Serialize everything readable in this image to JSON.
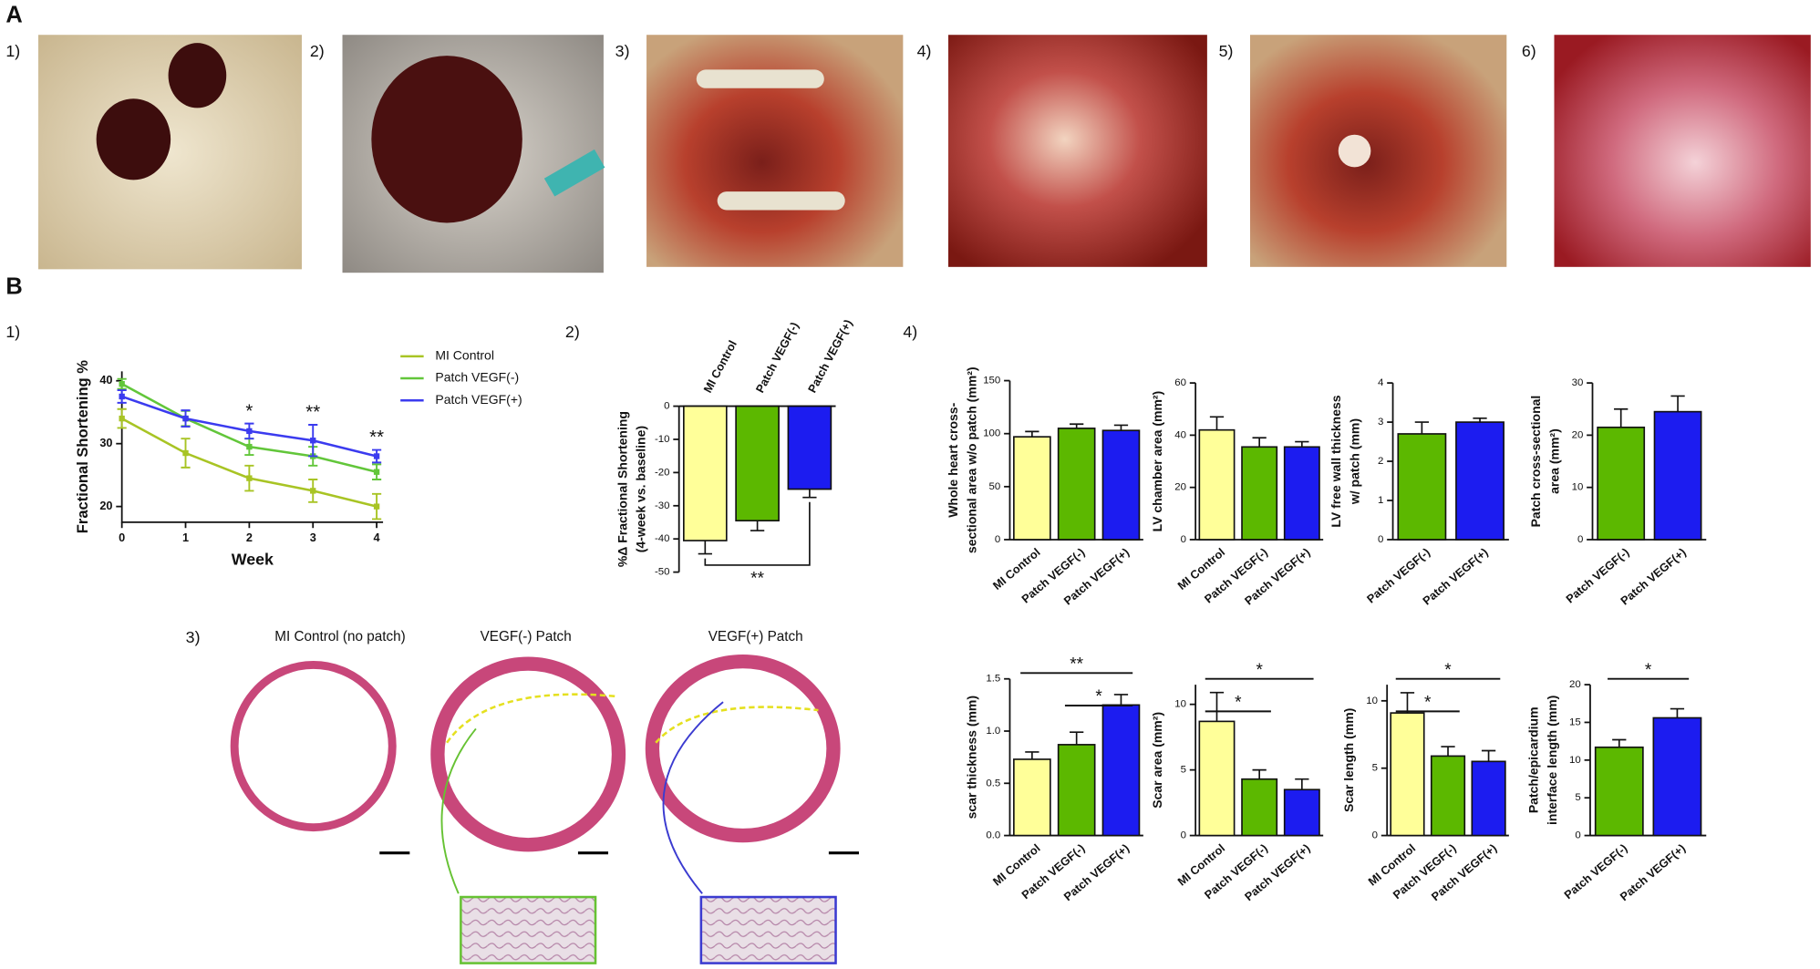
{
  "labels": {
    "a": "A",
    "b": "B",
    "photos": [
      "1)",
      "2)",
      "3)",
      "4)",
      "5)",
      "6)"
    ],
    "panels": [
      "1)",
      "2)",
      "3)",
      "4)"
    ],
    "histology": [
      "MI Control (no patch)",
      "VEGF(-) Patch",
      "VEGF(+) Patch"
    ]
  },
  "chart_data": [
    {
      "type": "line",
      "xlabel": "Week",
      "ylabel": "Fractional Shortening %",
      "x": [
        0,
        1,
        2,
        3,
        4
      ],
      "xlim": [
        0,
        4.1
      ],
      "xticks": [
        0,
        1,
        2,
        3,
        4
      ],
      "ylim": [
        17.5,
        41.5
      ],
      "yticks": [
        20,
        30,
        40
      ],
      "series": [
        {
          "name": "MI Control",
          "color": "#a8c424",
          "values": [
            34,
            28.5,
            24.5,
            22.5,
            20
          ],
          "errors": [
            1.5,
            2.3,
            2,
            1.8,
            2
          ]
        },
        {
          "name": "Patch VEGF(-)",
          "color": "#62c63a",
          "values": [
            39.5,
            34,
            29.5,
            28,
            25.5
          ],
          "errors": [
            0.8,
            1.2,
            1.3,
            1.5,
            1.2
          ]
        },
        {
          "name": "Patch VEGF(+)",
          "color": "#3b3bef",
          "values": [
            37.5,
            34,
            32,
            30.5,
            28
          ],
          "errors": [
            1,
            1.3,
            1.2,
            2.5,
            1
          ]
        }
      ],
      "annotations": [
        {
          "x": 2,
          "text": "*"
        },
        {
          "x": 3,
          "text": "**"
        },
        {
          "x": 4,
          "text": "**"
        }
      ]
    },
    {
      "type": "bar",
      "ylabel": [
        "%Δ Fractional Shortening",
        "(4-week vs. baseline)"
      ],
      "categories": [
        "MI Control",
        "Patch VEGF(-)",
        "Patch VEGF(+)"
      ],
      "values": [
        -40.5,
        -34.5,
        -25
      ],
      "errors": [
        4,
        3,
        2.5
      ],
      "colors": [
        "#ffff99",
        "#5cb800",
        "#1c1cf0"
      ],
      "ylim": [
        -50,
        0
      ],
      "yticks": [
        0,
        -10,
        -20,
        -30,
        -40,
        -50
      ],
      "significance": [
        {
          "between": [
            0,
            2
          ],
          "text": "**"
        }
      ]
    },
    {
      "type": "bar",
      "ylabel": [
        "Whole heart cross-",
        "sectional area w/o patch (mm²)"
      ],
      "categories": [
        "MI Control",
        "Patch VEGF(-)",
        "Patch VEGF(+)"
      ],
      "values": [
        97,
        105,
        103
      ],
      "errors": [
        5,
        4,
        5
      ],
      "colors": [
        "#ffff99",
        "#5cb800",
        "#1c1cf0"
      ],
      "ylim": [
        0,
        150
      ],
      "yticks": [
        0,
        50,
        100,
        150
      ]
    },
    {
      "type": "bar",
      "ylabel": [
        "LV chamber area (mm²)"
      ],
      "categories": [
        "MI Control",
        "Patch VEGF(-)",
        "Patch VEGF(+)"
      ],
      "values": [
        42,
        35.5,
        35.5
      ],
      "errors": [
        5,
        3.5,
        2
      ],
      "colors": [
        "#ffff99",
        "#5cb800",
        "#1c1cf0"
      ],
      "ylim": [
        0,
        60
      ],
      "yticks": [
        0,
        20,
        40,
        60
      ]
    },
    {
      "type": "bar",
      "ylabel": [
        "LV free wall thickness",
        "w/ patch (mm)"
      ],
      "categories": [
        "Patch VEGF(-)",
        "Patch VEGF(+)"
      ],
      "values": [
        2.7,
        3.0
      ],
      "errors": [
        0.3,
        0.1
      ],
      "colors": [
        "#5cb800",
        "#1c1cf0"
      ],
      "ylim": [
        0,
        4
      ],
      "yticks": [
        0,
        1,
        2,
        3,
        4
      ]
    },
    {
      "type": "bar",
      "ylabel": [
        "Patch cross-sectional",
        "area  (mm²)"
      ],
      "categories": [
        "Patch VEGF(-)",
        "Patch VEGF(+)"
      ],
      "values": [
        21.5,
        24.5
      ],
      "errors": [
        3.5,
        3
      ],
      "colors": [
        "#5cb800",
        "#1c1cf0"
      ],
      "ylim": [
        0,
        30
      ],
      "yticks": [
        0,
        10,
        20,
        30
      ]
    },
    {
      "type": "bar",
      "ylabel": [
        "scar thickness (mm)"
      ],
      "categories": [
        "MI Control",
        "Patch VEGF(-)",
        "Patch VEGF(+)"
      ],
      "values": [
        0.73,
        0.87,
        1.25
      ],
      "errors": [
        0.07,
        0.12,
        0.1
      ],
      "colors": [
        "#ffff99",
        "#5cb800",
        "#1c1cf0"
      ],
      "ylim": [
        0,
        1.5
      ],
      "yticks": [
        {
          "value": 0,
          "label": "0.0"
        },
        0.5,
        {
          "value": 1,
          "label": "1.0"
        },
        1.5
      ],
      "significance": [
        {
          "between": [
            0,
            2
          ],
          "text": "**"
        },
        {
          "between": [
            1,
            2
          ],
          "text": "*"
        }
      ]
    },
    {
      "type": "bar",
      "ylabel": [
        "Scar area (mm²)"
      ],
      "categories": [
        "MI Control",
        "Patch VEGF(-)",
        "Patch VEGF(+)"
      ],
      "values": [
        8.7,
        4.3,
        3.5
      ],
      "errors": [
        2.2,
        0.7,
        0.8
      ],
      "colors": [
        "#ffff99",
        "#5cb800",
        "#1c1cf0"
      ],
      "ylim": [
        0,
        11.5
      ],
      "yticks": [
        0,
        5,
        10
      ],
      "significance": [
        {
          "between": [
            0,
            2
          ],
          "text": "*"
        },
        {
          "between": [
            0,
            1
          ],
          "text": "*"
        }
      ]
    },
    {
      "type": "bar",
      "ylabel": [
        "Scar length (mm)"
      ],
      "categories": [
        "MI Control",
        "Patch VEGF(-)",
        "Patch VEGF(+)"
      ],
      "values": [
        9.1,
        5.9,
        5.5
      ],
      "errors": [
        1.5,
        0.7,
        0.8
      ],
      "colors": [
        "#ffff99",
        "#5cb800",
        "#1c1cf0"
      ],
      "ylim": [
        0,
        11.2
      ],
      "yticks": [
        0,
        5,
        10
      ],
      "significance": [
        {
          "between": [
            0,
            2
          ],
          "text": "*"
        },
        {
          "between": [
            0,
            1
          ],
          "text": "*"
        }
      ]
    },
    {
      "type": "bar",
      "ylabel": [
        "Patch/epicardium",
        "interface length (mm)"
      ],
      "categories": [
        "Patch VEGF(-)",
        "Patch VEGF(+)"
      ],
      "values": [
        11.7,
        15.6
      ],
      "errors": [
        1,
        1.2
      ],
      "colors": [
        "#5cb800",
        "#1c1cf0"
      ],
      "ylim": [
        0,
        20
      ],
      "yticks": [
        0,
        5,
        10,
        15,
        20
      ],
      "significance": [
        {
          "between": [
            0,
            1
          ],
          "text": "*"
        }
      ]
    }
  ]
}
